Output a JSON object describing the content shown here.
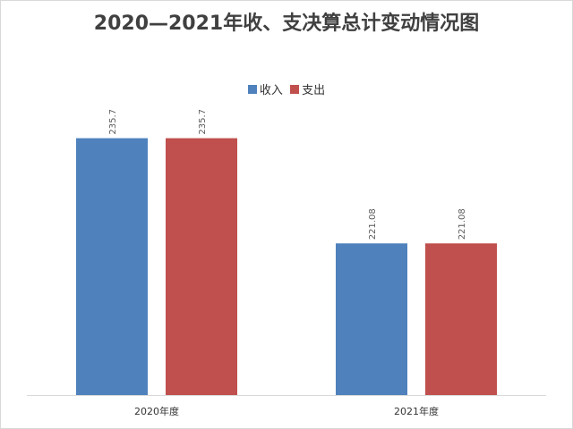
{
  "chart_data": {
    "type": "bar",
    "title": "2020—2021年收、支决算总计变动情况图",
    "categories": [
      "2020年度",
      "2021年度"
    ],
    "series": [
      {
        "name": "收入",
        "values": [
          235.7,
          221.08
        ],
        "color": "#4f81bd"
      },
      {
        "name": "支出",
        "values": [
          235.7,
          221.08
        ],
        "color": "#c0504d"
      }
    ],
    "value_labels": [
      [
        "235.7",
        "221.08"
      ],
      [
        "235.7",
        "221.08"
      ]
    ],
    "ylim": [
      200,
      240
    ],
    "grid": false,
    "legend_position": "top"
  }
}
